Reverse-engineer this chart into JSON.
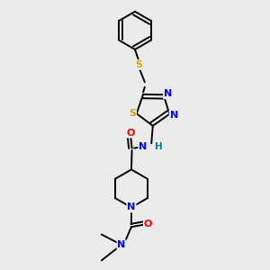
{
  "background_color": "#ebebeb",
  "atom_colors": {
    "N": "#0000ff",
    "O": "#ff0000",
    "S": "#ccaa00",
    "NH": "#008888"
  },
  "bond_color": "#000000",
  "bond_width": 1.4,
  "figsize": [
    3.0,
    3.0
  ],
  "dpi": 100
}
